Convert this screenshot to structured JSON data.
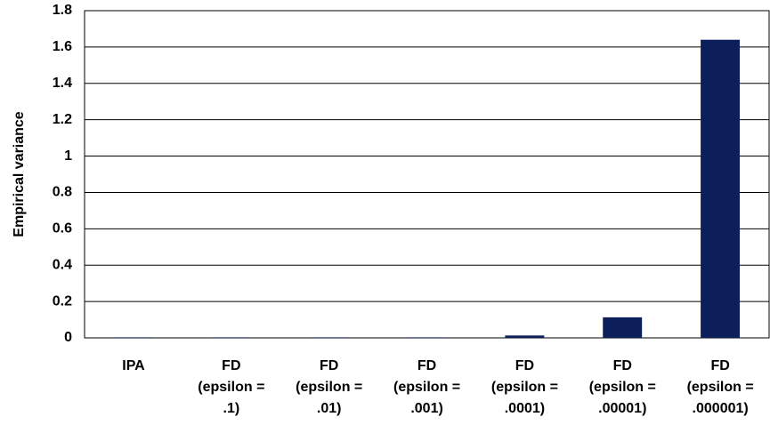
{
  "chart_data": {
    "type": "bar",
    "y_label": "Empirical variance",
    "categories": [
      "IPA",
      "FD\n(epsilon =\n.1)",
      "FD\n(epsilon =\n.01)",
      "FD\n(epsilon =\n.001)",
      "FD\n(epsilon =\n.0001)",
      "FD\n(epsilon =\n.00001)",
      "FD\n(epsilon =\n.000001)"
    ],
    "values": [
      0.003,
      0.003,
      0.003,
      0.003,
      0.013,
      0.113,
      1.64
    ],
    "color": "#0c1f5a",
    "ylim": [
      0,
      1.8
    ],
    "yticks": [
      0,
      0.2,
      0.4,
      0.6,
      0.8,
      1,
      1.2,
      1.4,
      1.6,
      1.8
    ],
    "grid": true
  }
}
